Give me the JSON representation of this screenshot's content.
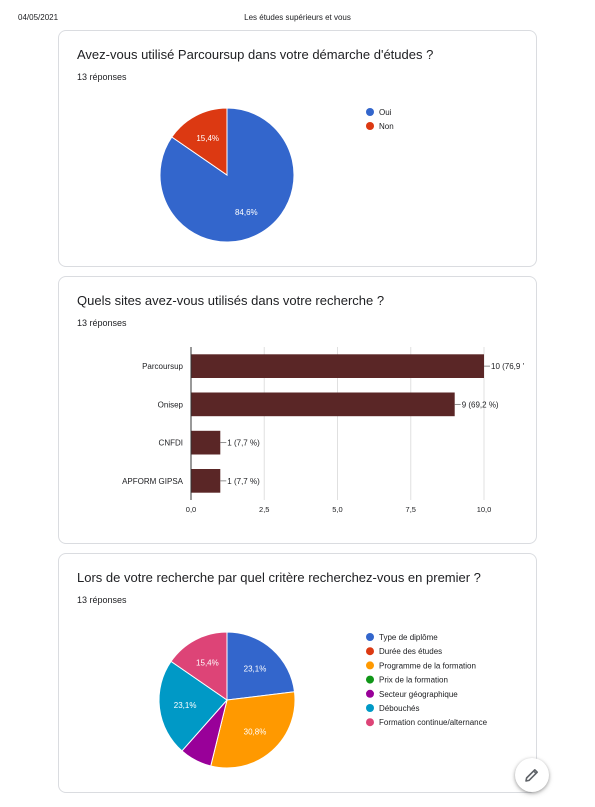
{
  "header": {
    "date": "04/05/2021",
    "title": "Les études supérieurs et vous"
  },
  "questions": [
    {
      "title": "Avez-vous utilisé Parcoursup dans votre démarche d'études ?",
      "responses": "13 réponses"
    },
    {
      "title": "Quels sites avez-vous utilisés dans votre recherche ?",
      "responses": "13 réponses"
    },
    {
      "title": "Lors de votre recherche par quel critère recherchez-vous en premier ?",
      "responses": "13 réponses"
    }
  ],
  "chart_data": [
    {
      "type": "pie",
      "labels": [
        "Oui",
        "Non"
      ],
      "values": [
        84.6,
        15.4
      ],
      "slice_labels": [
        "84,6%",
        "15,4%"
      ],
      "colors": [
        "#3366cc",
        "#dc3912"
      ],
      "legend": "right"
    },
    {
      "type": "bar",
      "orientation": "horizontal",
      "categories": [
        "Parcoursup",
        "Onisep",
        "CNFDI",
        "APFORM GIPSA"
      ],
      "values": [
        10,
        9,
        1,
        1
      ],
      "data_labels": [
        "10 (76,9 '",
        "9 (69,2 %)",
        "1 (7,7 %)",
        "1 (7,7 %)"
      ],
      "xlim": [
        0,
        10
      ],
      "xticks": [
        "0,0",
        "2,5",
        "5,0",
        "7,5",
        "10,0"
      ],
      "color": "#5a2626",
      "grid": true
    },
    {
      "type": "pie",
      "labels": [
        "Type de diplôme",
        "Durée des études",
        "Programme de la formation",
        "Prix de la formation",
        "Secteur géographique",
        "Débouchés",
        "Formation continue/alternance"
      ],
      "values": [
        23.1,
        0,
        30.8,
        0,
        7.7,
        23.1,
        15.4
      ],
      "slice_labels": [
        "23,1%",
        "",
        "30,8%",
        "",
        "",
        "23,1%",
        "15,4%"
      ],
      "colors": [
        "#3366cc",
        "#dc3912",
        "#ff9900",
        "#109618",
        "#990099",
        "#0099c6",
        "#dd4477"
      ],
      "legend": "right"
    }
  ],
  "fab": {
    "icon": "pencil-icon"
  }
}
